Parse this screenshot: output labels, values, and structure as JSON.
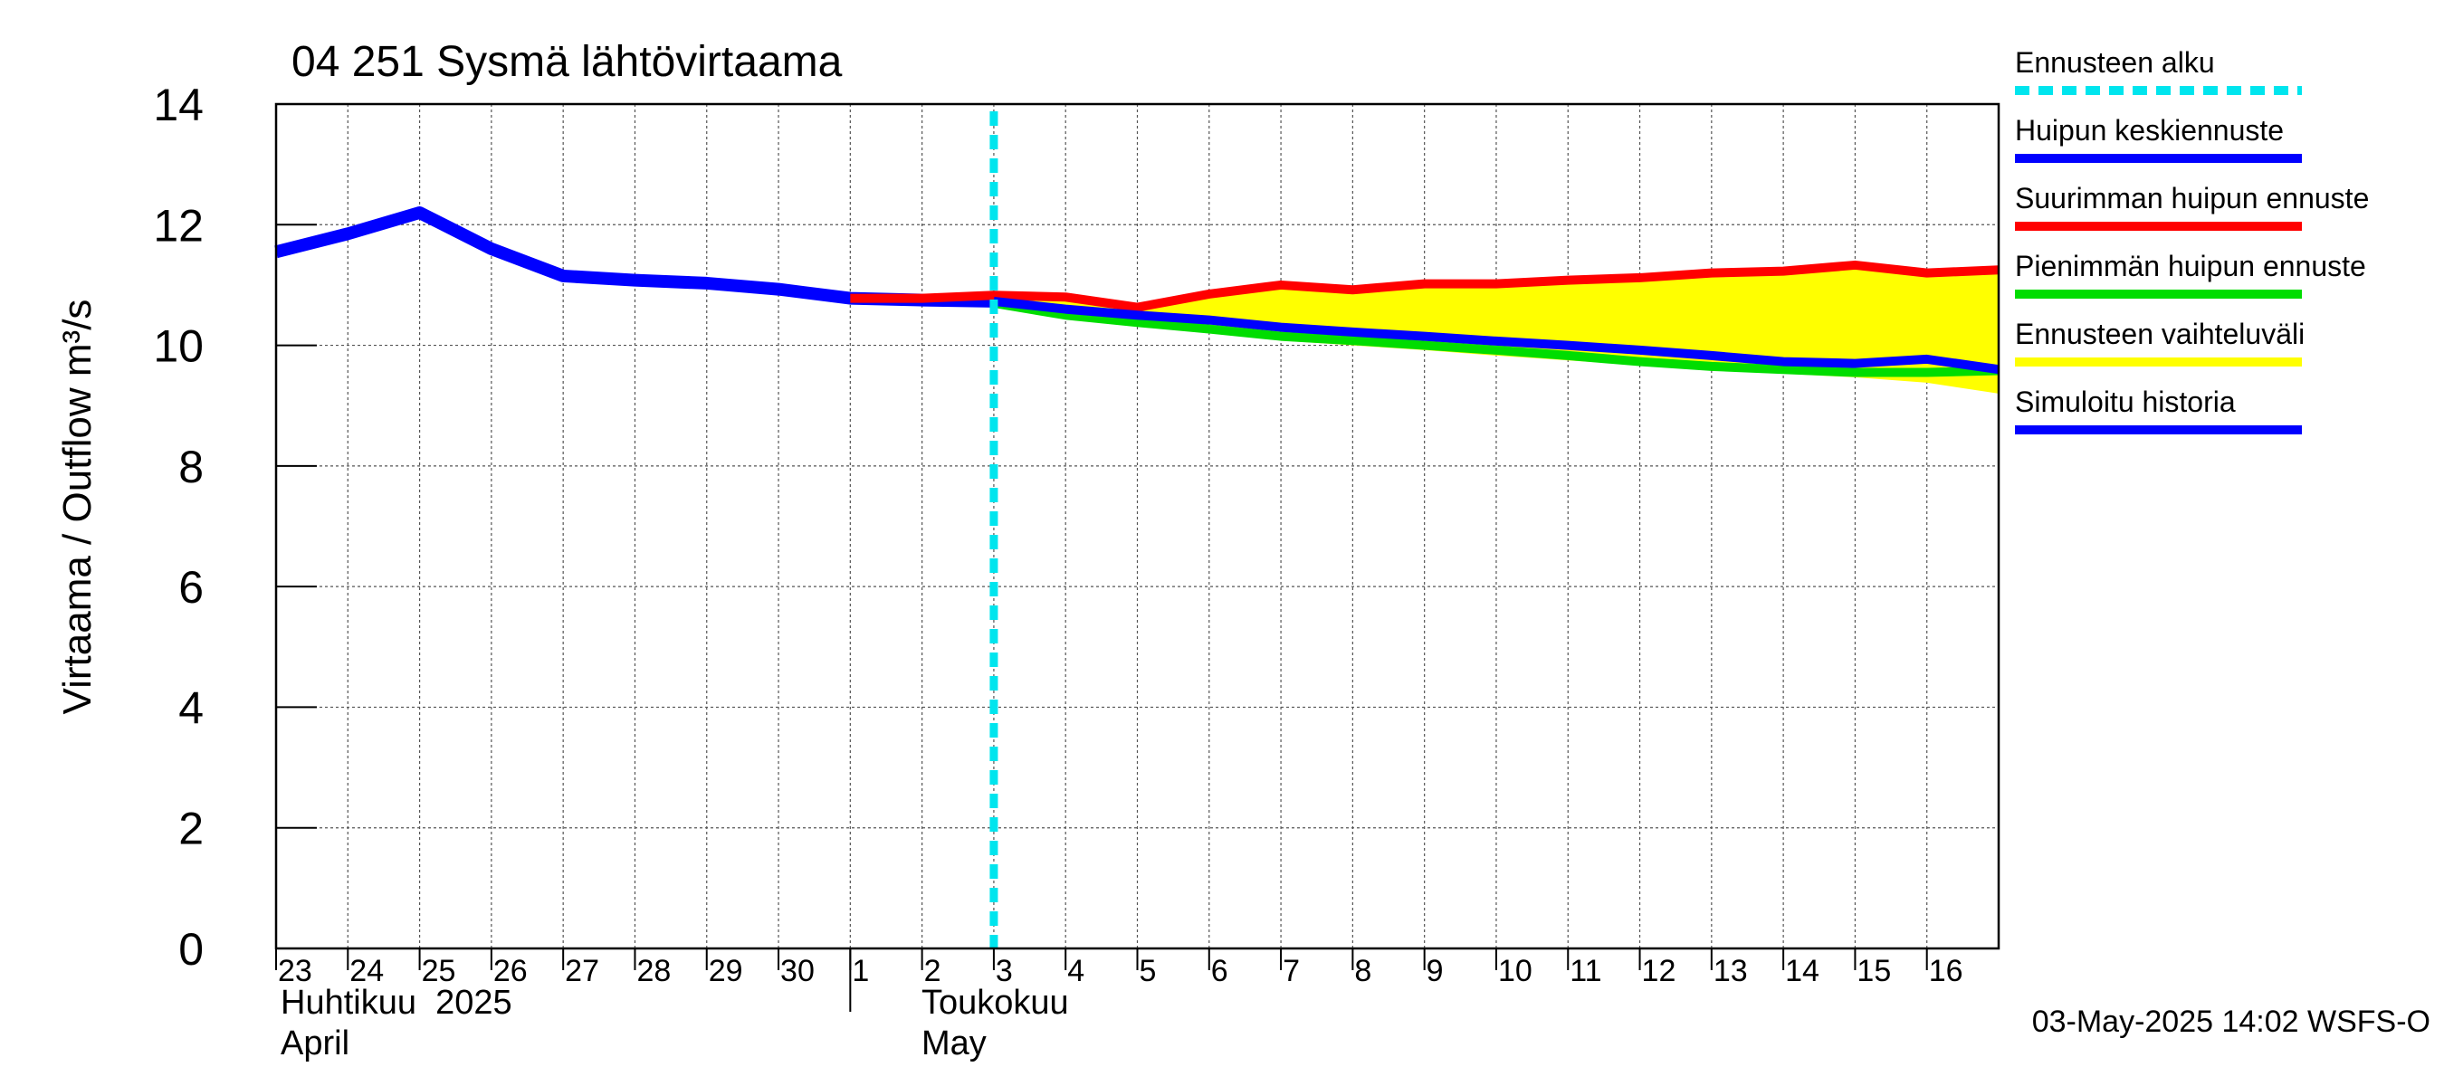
{
  "chart_data": {
    "type": "line",
    "title": "04 251 Sysmä lähtövirtaama",
    "ylabel": "Virtaama / Outflow    m³/s",
    "ylim": [
      0,
      14
    ],
    "yticks": [
      0,
      2,
      4,
      6,
      8,
      10,
      12,
      14
    ],
    "xlim": [
      0,
      24
    ],
    "x_tick_labels": [
      "23",
      "24",
      "25",
      "26",
      "27",
      "28",
      "29",
      "30",
      "1",
      "2",
      "3",
      "4",
      "5",
      "6",
      "7",
      "8",
      "9",
      "10",
      "11",
      "12",
      "13",
      "14",
      "15",
      "16"
    ],
    "month_labels": {
      "april_fi": "Huhtikuu  2025",
      "april_en": "April",
      "may_fi": "Toukokuu",
      "may_en": "May"
    },
    "forecast_start_x": 10.0,
    "grid": true,
    "legend_position": "right",
    "footer": "03-May-2025 14:02 WSFS-O",
    "legend": [
      {
        "label": "Ennusteen alku",
        "color": "#00e5ee",
        "style": "dashed"
      },
      {
        "label": "Huipun keskiennuste",
        "color": "#0000ff",
        "style": "solid"
      },
      {
        "label": "Suurimman huipun ennuste",
        "color": "#ff0000",
        "style": "solid"
      },
      {
        "label": "Pienimmän huipun ennuste",
        "color": "#00dd00",
        "style": "solid"
      },
      {
        "label": "Ennusteen vaihteluväli",
        "color": "#ffff00",
        "style": "solid"
      },
      {
        "label": "Simuloitu historia",
        "color": "#0000ff",
        "style": "solid"
      }
    ],
    "series": [
      {
        "name": "Simuloitu historia",
        "color": "#0000ff",
        "x": [
          0,
          1,
          2,
          3,
          4,
          5,
          6,
          7,
          8,
          9,
          10
        ],
        "values": [
          11.55,
          11.85,
          12.2,
          11.6,
          11.15,
          11.08,
          11.03,
          10.93,
          10.78,
          10.75,
          10.73
        ]
      },
      {
        "name": "Suurimman huipun ennuste",
        "color": "#ff0000",
        "x": [
          8,
          9,
          10,
          11,
          12,
          13,
          14,
          15,
          16,
          17,
          18,
          19,
          20,
          21,
          22,
          23,
          24
        ],
        "values": [
          10.78,
          10.78,
          10.83,
          10.8,
          10.63,
          10.85,
          11.0,
          10.92,
          11.02,
          11.02,
          11.08,
          11.12,
          11.2,
          11.23,
          11.33,
          11.2,
          11.25
        ]
      },
      {
        "name": "Pienimmän huipun ennuste",
        "color": "#00dd00",
        "x": [
          10,
          11,
          12,
          13,
          14,
          15,
          16,
          17,
          18,
          19,
          20,
          21,
          22,
          23,
          24
        ],
        "values": [
          10.7,
          10.5,
          10.38,
          10.27,
          10.15,
          10.08,
          10.0,
          9.92,
          9.83,
          9.73,
          9.65,
          9.6,
          9.55,
          9.55,
          9.58
        ]
      },
      {
        "name": "Huipun keskiennuste",
        "color": "#0000ff",
        "x": [
          10,
          11,
          12,
          13,
          14,
          15,
          16,
          17,
          18,
          19,
          20,
          21,
          22,
          23,
          24
        ],
        "values": [
          10.73,
          10.6,
          10.5,
          10.42,
          10.3,
          10.22,
          10.15,
          10.07,
          10.0,
          9.92,
          9.83,
          9.73,
          9.7,
          9.77,
          9.6
        ]
      }
    ],
    "range_band": {
      "name": "Ennusteen vaihteluväli",
      "color": "#ffff00",
      "x": [
        10,
        11,
        12,
        13,
        14,
        15,
        16,
        17,
        18,
        19,
        20,
        21,
        22,
        23,
        24
      ],
      "upper": [
        10.83,
        10.8,
        10.63,
        10.85,
        11.0,
        10.92,
        11.02,
        11.02,
        11.08,
        11.12,
        11.2,
        11.23,
        11.33,
        11.2,
        11.25
      ],
      "lower": [
        10.68,
        10.48,
        10.33,
        10.2,
        10.08,
        10.0,
        9.92,
        9.83,
        9.75,
        9.67,
        9.6,
        9.53,
        9.47,
        9.38,
        9.2
      ]
    }
  }
}
